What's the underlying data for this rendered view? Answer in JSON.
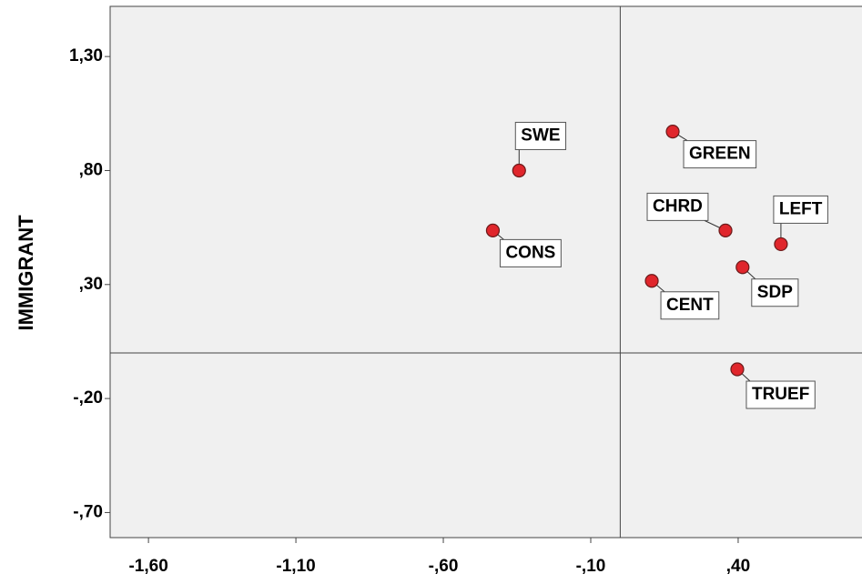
{
  "chart_data": {
    "type": "scatter",
    "y_label": "IMMIGRANT",
    "points": [
      {
        "name": "SWE",
        "x": -0.343,
        "y": 0.8
      },
      {
        "name": "CONS",
        "x": -0.432,
        "y": 0.537
      },
      {
        "name": "GREEN",
        "x": 0.178,
        "y": 0.971
      },
      {
        "name": "CHRD",
        "x": 0.357,
        "y": 0.537
      },
      {
        "name": "LEFT",
        "x": 0.545,
        "y": 0.477
      },
      {
        "name": "SDP",
        "x": 0.415,
        "y": 0.376
      },
      {
        "name": "CENT",
        "x": 0.107,
        "y": 0.316
      },
      {
        "name": "TRUEF",
        "x": 0.397,
        "y": -0.072
      }
    ],
    "color": "#e0262c",
    "xlim": [
      -1.73,
      0.82
    ],
    "ylim": [
      -0.81,
      1.52
    ],
    "xticks": [
      {
        "value": -1.6,
        "label": "-1,60"
      },
      {
        "value": -1.1,
        "label": "-1,10"
      },
      {
        "value": -0.6,
        "label": "-,60"
      },
      {
        "value": -0.1,
        "label": "-,10"
      },
      {
        "value": 0.4,
        "label": ",40"
      }
    ],
    "yticks": [
      {
        "value": 1.3,
        "label": "1,30"
      },
      {
        "value": 0.8,
        "label": ",80"
      },
      {
        "value": 0.3,
        "label": ",30"
      },
      {
        "value": -0.2,
        "label": "-,20"
      },
      {
        "value": -0.7,
        "label": "-,70"
      }
    ],
    "reference_lines": {
      "x": 0,
      "y": 0
    }
  }
}
